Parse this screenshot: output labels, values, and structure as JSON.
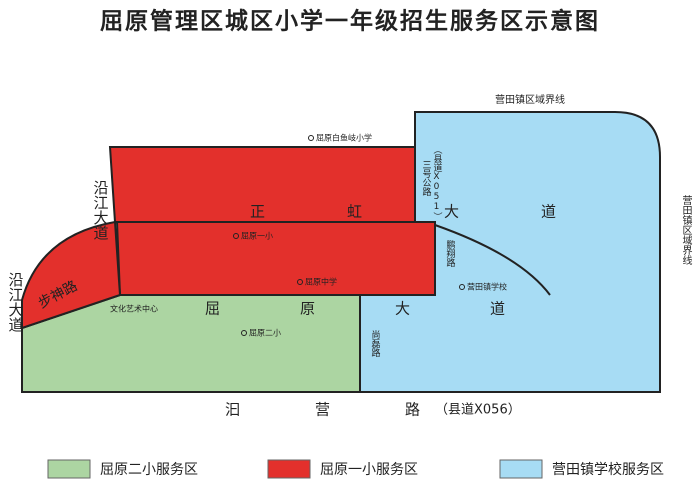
{
  "title": "屈原管理区城区小学一年级招生服务区示意图",
  "roads": {
    "yanjiang_top": "沿江大道",
    "yanjiang_left": "沿江大道",
    "bushen": "步神路",
    "zhenghong": "正虹大道",
    "quyuan": "屈原大道",
    "miying": "汩营路",
    "miying_note": "（县道X056）",
    "sanhao": "三号公路",
    "sanhao_note": "（县道X051）",
    "pengxiang": "鹏翔路",
    "shanglei": "尚磊路"
  },
  "boundary": {
    "top": "营田镇区域界线",
    "right": "营田镇区域界线"
  },
  "places": {
    "baiyuqi": "屈原白鱼岐小学",
    "yixiao": "屈原一小",
    "zhongxue": "屈原中学",
    "yingtian": "营田镇学校",
    "wenhua": "文化艺术中心",
    "erxiao": "屈原二小"
  },
  "legend": [
    "屈原二小服务区",
    "屈原一小服务区",
    "营田镇学校服务区"
  ]
}
